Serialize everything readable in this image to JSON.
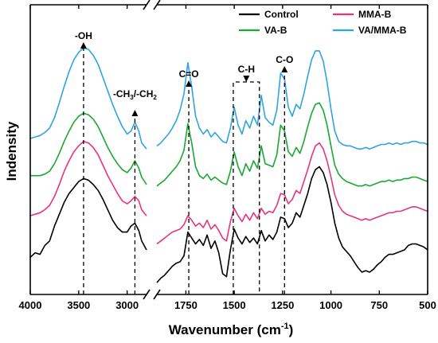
{
  "chart_data": {
    "type": "line",
    "xlabel": "Wavenumber (cm",
    "xlabel_sup": "-1",
    "xlabel_tail": ")",
    "ylabel": "Indensity",
    "x_segments": [
      {
        "from": 4000,
        "to": 2800,
        "ticks": [
          4000,
          3500,
          3000
        ]
      },
      {
        "from": 1900,
        "to": 500,
        "ticks": [
          1750,
          1500,
          1250,
          1000,
          750,
          500
        ]
      }
    ],
    "y_ticks_shown": false,
    "legend": {
      "placement": "top-right",
      "columns": 2
    },
    "series": [
      {
        "name": "Control",
        "color": "#000000",
        "x": [
          4000,
          3950,
          3900,
          3850,
          3800,
          3750,
          3700,
          3650,
          3600,
          3550,
          3500,
          3450,
          3400,
          3350,
          3300,
          3250,
          3200,
          3150,
          3100,
          3050,
          3000,
          2960,
          2920,
          2880,
          2850,
          2800,
          1900,
          1880,
          1860,
          1840,
          1820,
          1800,
          1780,
          1760,
          1740,
          1720,
          1700,
          1680,
          1660,
          1640,
          1620,
          1600,
          1580,
          1560,
          1540,
          1520,
          1500,
          1480,
          1460,
          1440,
          1420,
          1400,
          1380,
          1360,
          1340,
          1320,
          1300,
          1280,
          1260,
          1240,
          1220,
          1200,
          1180,
          1160,
          1140,
          1120,
          1100,
          1080,
          1060,
          1040,
          1020,
          1000,
          980,
          960,
          940,
          920,
          900,
          880,
          860,
          840,
          820,
          800,
          780,
          760,
          740,
          720,
          700,
          680,
          660,
          640,
          620,
          600,
          580,
          560,
          540,
          520,
          500
        ],
        "y": [
          0.25,
          0.28,
          0.27,
          0.33,
          0.36,
          0.46,
          0.54,
          0.62,
          0.68,
          0.72,
          0.76,
          0.78,
          0.77,
          0.74,
          0.7,
          0.64,
          0.57,
          0.5,
          0.45,
          0.42,
          0.42,
          0.46,
          0.48,
          0.43,
          0.36,
          0.3,
          0.08,
          0.11,
          0.13,
          0.16,
          0.19,
          0.21,
          0.22,
          0.26,
          0.42,
          0.38,
          0.34,
          0.37,
          0.33,
          0.4,
          0.31,
          0.36,
          0.28,
          0.14,
          0.12,
          0.3,
          0.44,
          0.38,
          0.34,
          0.39,
          0.35,
          0.38,
          0.34,
          0.43,
          0.36,
          0.4,
          0.37,
          0.42,
          0.52,
          0.51,
          0.45,
          0.48,
          0.55,
          0.52,
          0.6,
          0.68,
          0.78,
          0.84,
          0.86,
          0.82,
          0.74,
          0.62,
          0.48,
          0.38,
          0.32,
          0.29,
          0.26,
          0.22,
          0.18,
          0.15,
          0.16,
          0.15,
          0.17,
          0.2,
          0.22,
          0.25,
          0.27,
          0.27,
          0.28,
          0.29,
          0.3,
          0.33,
          0.34,
          0.34,
          0.33,
          0.32,
          0.3
        ]
      },
      {
        "name": "MMA-B",
        "color": "#e8347e",
        "x": [
          4000,
          3950,
          3900,
          3850,
          3800,
          3750,
          3700,
          3650,
          3600,
          3550,
          3500,
          3450,
          3400,
          3350,
          3300,
          3250,
          3200,
          3150,
          3100,
          3050,
          3000,
          2960,
          2920,
          2880,
          2850,
          2800,
          1900,
          1880,
          1860,
          1840,
          1820,
          1800,
          1780,
          1760,
          1740,
          1720,
          1700,
          1680,
          1660,
          1640,
          1620,
          1600,
          1580,
          1560,
          1540,
          1520,
          1500,
          1480,
          1460,
          1440,
          1420,
          1400,
          1380,
          1360,
          1340,
          1320,
          1300,
          1280,
          1260,
          1240,
          1220,
          1200,
          1180,
          1160,
          1140,
          1120,
          1100,
          1080,
          1060,
          1040,
          1020,
          1000,
          980,
          960,
          940,
          920,
          900,
          880,
          860,
          840,
          820,
          800,
          780,
          760,
          740,
          720,
          700,
          680,
          660,
          640,
          620,
          600,
          580,
          560,
          540,
          520,
          500
        ],
        "y": [
          0.53,
          0.54,
          0.55,
          0.57,
          0.6,
          0.66,
          0.74,
          0.83,
          0.9,
          0.96,
          1.0,
          1.03,
          1.02,
          0.99,
          0.94,
          0.87,
          0.8,
          0.74,
          0.68,
          0.63,
          0.61,
          0.63,
          0.66,
          0.63,
          0.57,
          0.53,
          0.34,
          0.36,
          0.38,
          0.4,
          0.42,
          0.43,
          0.44,
          0.47,
          0.53,
          0.5,
          0.46,
          0.48,
          0.45,
          0.5,
          0.44,
          0.47,
          0.43,
          0.38,
          0.36,
          0.49,
          0.58,
          0.53,
          0.49,
          0.54,
          0.5,
          0.55,
          0.51,
          0.58,
          0.54,
          0.56,
          0.55,
          0.6,
          0.68,
          0.67,
          0.61,
          0.64,
          0.7,
          0.68,
          0.76,
          0.84,
          0.93,
          1.0,
          1.02,
          0.98,
          0.9,
          0.79,
          0.67,
          0.6,
          0.56,
          0.54,
          0.53,
          0.52,
          0.51,
          0.5,
          0.51,
          0.5,
          0.51,
          0.52,
          0.53,
          0.54,
          0.55,
          0.55,
          0.56,
          0.56,
          0.57,
          0.58,
          0.59,
          0.59,
          0.58,
          0.57,
          0.56
        ]
      },
      {
        "name": "VA-B",
        "color": "#1aa832",
        "x": [
          4000,
          3950,
          3900,
          3850,
          3800,
          3750,
          3700,
          3650,
          3600,
          3550,
          3500,
          3450,
          3400,
          3350,
          3300,
          3250,
          3200,
          3150,
          3100,
          3050,
          3000,
          2960,
          2920,
          2880,
          2850,
          2800,
          1900,
          1880,
          1860,
          1840,
          1820,
          1800,
          1780,
          1760,
          1740,
          1720,
          1700,
          1680,
          1660,
          1640,
          1620,
          1600,
          1580,
          1560,
          1540,
          1520,
          1500,
          1480,
          1460,
          1440,
          1420,
          1400,
          1380,
          1360,
          1340,
          1320,
          1300,
          1280,
          1260,
          1240,
          1220,
          1200,
          1180,
          1160,
          1140,
          1120,
          1100,
          1080,
          1060,
          1040,
          1020,
          1000,
          980,
          960,
          940,
          920,
          900,
          880,
          860,
          840,
          820,
          800,
          780,
          760,
          740,
          720,
          700,
          680,
          660,
          640,
          620,
          600,
          580,
          560,
          540,
          520,
          500
        ],
        "y": [
          0.8,
          0.8,
          0.8,
          0.81,
          0.83,
          0.88,
          0.95,
          1.03,
          1.1,
          1.16,
          1.2,
          1.22,
          1.21,
          1.18,
          1.13,
          1.06,
          0.99,
          0.93,
          0.88,
          0.84,
          0.82,
          0.85,
          0.9,
          0.85,
          0.79,
          0.74,
          0.73,
          0.75,
          0.77,
          0.8,
          0.83,
          0.86,
          0.9,
          0.97,
          1.15,
          1.02,
          0.86,
          0.8,
          0.78,
          0.81,
          0.77,
          0.79,
          0.77,
          0.75,
          0.74,
          0.83,
          0.96,
          0.86,
          0.8,
          0.88,
          0.83,
          0.9,
          0.85,
          1.0,
          0.88,
          0.87,
          0.86,
          0.94,
          1.14,
          1.1,
          0.96,
          0.93,
          0.99,
          0.95,
          1.03,
          1.13,
          1.22,
          1.28,
          1.29,
          1.24,
          1.14,
          1.0,
          0.87,
          0.81,
          0.78,
          0.76,
          0.75,
          0.74,
          0.73,
          0.73,
          0.74,
          0.73,
          0.74,
          0.75,
          0.76,
          0.76,
          0.77,
          0.76,
          0.77,
          0.77,
          0.78,
          0.78,
          0.79,
          0.79,
          0.78,
          0.77,
          0.76
        ]
      },
      {
        "name": "VA/MMA-B",
        "color": "#2fa4e0",
        "x": [
          4000,
          3950,
          3900,
          3850,
          3800,
          3750,
          3700,
          3650,
          3600,
          3550,
          3500,
          3450,
          3400,
          3350,
          3300,
          3250,
          3200,
          3150,
          3100,
          3050,
          3000,
          2960,
          2920,
          2880,
          2850,
          2800,
          1900,
          1880,
          1860,
          1840,
          1820,
          1800,
          1780,
          1760,
          1740,
          1720,
          1700,
          1680,
          1660,
          1640,
          1620,
          1600,
          1580,
          1560,
          1540,
          1520,
          1500,
          1480,
          1460,
          1440,
          1420,
          1400,
          1380,
          1360,
          1340,
          1320,
          1300,
          1280,
          1260,
          1240,
          1220,
          1200,
          1180,
          1160,
          1140,
          1120,
          1100,
          1080,
          1060,
          1040,
          1020,
          1000,
          980,
          960,
          940,
          920,
          900,
          880,
          860,
          840,
          820,
          800,
          780,
          760,
          740,
          720,
          700,
          680,
          660,
          640,
          620,
          600,
          580,
          560,
          540,
          520,
          500
        ],
        "y": [
          1.05,
          1.06,
          1.07,
          1.09,
          1.12,
          1.19,
          1.29,
          1.4,
          1.5,
          1.58,
          1.63,
          1.66,
          1.65,
          1.61,
          1.55,
          1.46,
          1.37,
          1.28,
          1.2,
          1.13,
          1.08,
          1.1,
          1.16,
          1.1,
          1.02,
          0.98,
          1.0,
          1.02,
          1.05,
          1.08,
          1.12,
          1.17,
          1.24,
          1.35,
          1.56,
          1.4,
          1.2,
          1.12,
          1.08,
          1.11,
          1.06,
          1.09,
          1.06,
          1.03,
          1.02,
          1.12,
          1.26,
          1.14,
          1.08,
          1.17,
          1.12,
          1.2,
          1.14,
          1.34,
          1.19,
          1.16,
          1.14,
          1.24,
          1.49,
          1.45,
          1.26,
          1.2,
          1.28,
          1.25,
          1.35,
          1.47,
          1.58,
          1.64,
          1.64,
          1.57,
          1.43,
          1.25,
          1.1,
          1.03,
          1.01,
          1.0,
          1.0,
          0.99,
          0.98,
          0.98,
          0.99,
          0.98,
          0.99,
          1.0,
          1.01,
          1.01,
          1.02,
          1.01,
          1.02,
          1.01,
          1.02,
          1.02,
          1.03,
          1.03,
          1.02,
          1.02,
          1.01
        ]
      }
    ],
    "annotations": [
      {
        "label": "-OH",
        "x": 3450
      },
      {
        "label": "-CH",
        "sub1": "3",
        "mid": "/-CH",
        "sub2": "2",
        "x": 2920
      },
      {
        "label": "C=O",
        "x": 1735
      },
      {
        "label": "C-H",
        "x_from": 1505,
        "x_to": 1370
      },
      {
        "label": "C-O",
        "x": 1240
      }
    ]
  }
}
